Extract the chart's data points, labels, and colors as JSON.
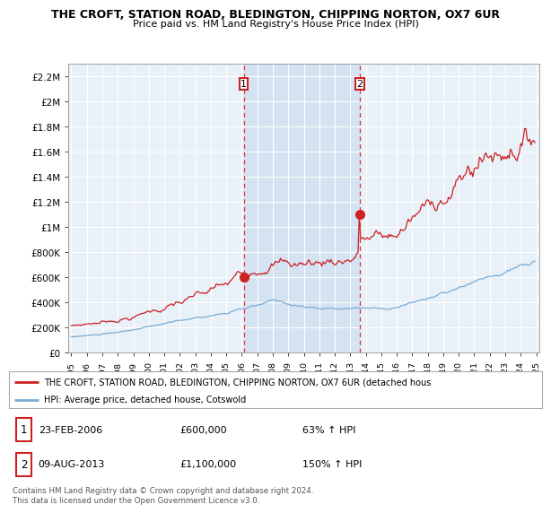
{
  "title": "THE CROFT, STATION ROAD, BLEDINGTON, CHIPPING NORTON, OX7 6UR",
  "subtitle": "Price paid vs. HM Land Registry's House Price Index (HPI)",
  "ylim": [
    0,
    2300000
  ],
  "yticks": [
    0,
    200000,
    400000,
    600000,
    800000,
    1000000,
    1200000,
    1400000,
    1600000,
    1800000,
    2000000,
    2200000
  ],
  "ytick_labels": [
    "£0",
    "£200K",
    "£400K",
    "£600K",
    "£800K",
    "£1M",
    "£1.2M",
    "£1.4M",
    "£1.6M",
    "£1.8M",
    "£2M",
    "£2.2M"
  ],
  "hpi_color": "#7aadd4",
  "price_color": "#cc2222",
  "dashed_color": "#dd3333",
  "annotation_box_color": "#cc2222",
  "shade_color": "#ddeeff",
  "legend_label_price": "THE CROFT, STATION ROAD, BLEDINGTON, CHIPPING NORTON, OX7 6UR (detached hous",
  "legend_label_hpi": "HPI: Average price, detached house, Cotswold",
  "sale1_date": "23-FEB-2006",
  "sale1_price": "£600,000",
  "sale1_hpi": "63% ↑ HPI",
  "sale1_x": 2006.13,
  "sale1_y": 600000,
  "sale2_date": "09-AUG-2013",
  "sale2_price": "£1,100,000",
  "sale2_hpi": "150% ↑ HPI",
  "sale2_x": 2013.62,
  "sale2_y": 1100000,
  "copyright": "Contains HM Land Registry data © Crown copyright and database right 2024.\nThis data is licensed under the Open Government Licence v3.0.",
  "xlim": [
    1994.8,
    2025.2
  ],
  "xticks": [
    1995,
    1996,
    1997,
    1998,
    1999,
    2000,
    2001,
    2002,
    2003,
    2004,
    2005,
    2006,
    2007,
    2008,
    2009,
    2010,
    2011,
    2012,
    2013,
    2014,
    2015,
    2016,
    2017,
    2018,
    2019,
    2020,
    2021,
    2022,
    2023,
    2024,
    2025
  ],
  "background_color": "#ffffff",
  "plot_bg_color": "#ffffff"
}
